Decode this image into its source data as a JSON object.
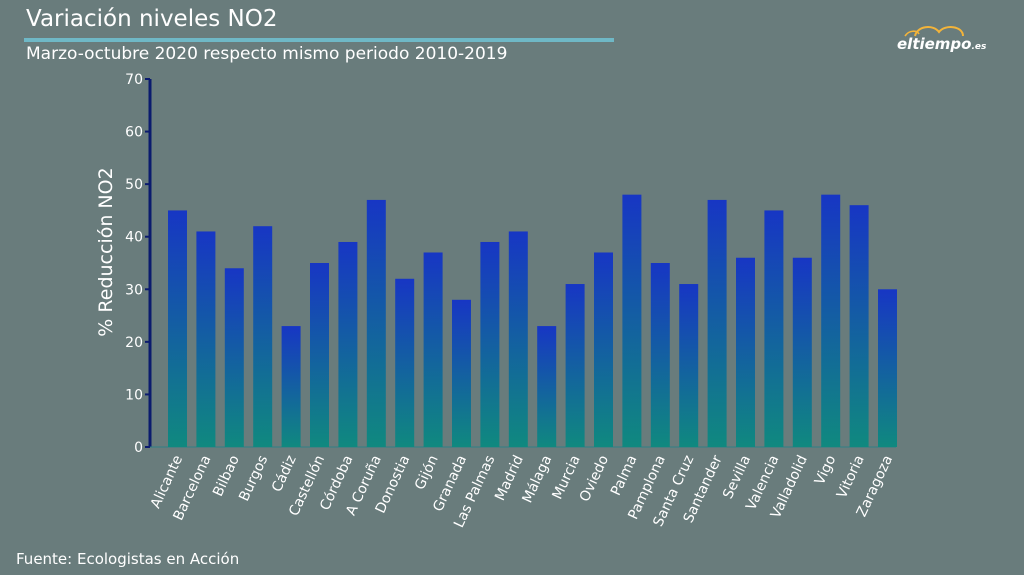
{
  "header": {
    "title": "Variación niveles NO2",
    "subtitle": "Marzo-octubre 2020 respecto mismo periodo 2010-2019"
  },
  "logo": {
    "brand": "eltiempo",
    "domain": ".es"
  },
  "footer": {
    "source": "Fuente: Ecologistas en Acción"
  },
  "chart_data": {
    "type": "bar",
    "title": "Variación niveles NO2",
    "subtitle": "Marzo-octubre 2020 respecto mismo periodo 2010-2019",
    "xlabel": "",
    "ylabel": "% Reducción NO2",
    "ylim": [
      0,
      70
    ],
    "yticks": [
      0,
      10,
      20,
      30,
      40,
      50,
      60,
      70
    ],
    "grid": false,
    "legend": "none",
    "categories": [
      "Alicante",
      "Barcelona",
      "Bilbao",
      "Burgos",
      "Cádiz",
      "Castellón",
      "Córdoba",
      "A Coruña",
      "Donostia",
      "Gijón",
      "Granada",
      "Las Palmas",
      "Madrid",
      "Málaga",
      "Murcia",
      "Oviedo",
      "Palma",
      "Pamplona",
      "Santa Cruz",
      "Santander",
      "Sevilla",
      "Valencia",
      "Valladolid",
      "Vigo",
      "Vitoria",
      "Zaragoza"
    ],
    "values": [
      45,
      41,
      34,
      42,
      23,
      35,
      39,
      47,
      32,
      37,
      28,
      39,
      41,
      23,
      31,
      37,
      48,
      35,
      31,
      47,
      36,
      45,
      36,
      48,
      46,
      30
    ],
    "colors": {
      "bar_top": "#1736c4",
      "bar_bottom": "#10897f",
      "axis": "#0b1b6e",
      "text": "#ffffff"
    }
  }
}
